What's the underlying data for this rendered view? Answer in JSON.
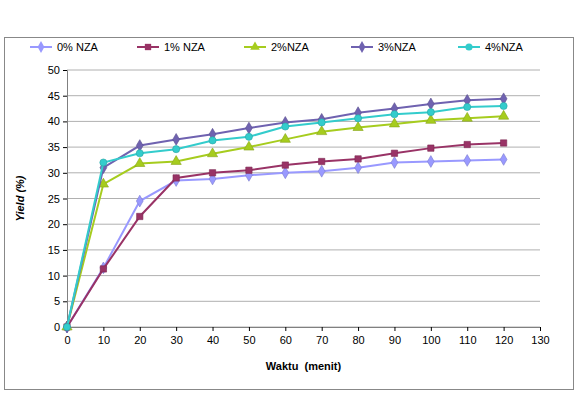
{
  "chart_data": {
    "type": "line",
    "x_label": "Waktu  (menit)",
    "y_label": "Yield (%)",
    "x": [
      0,
      10,
      20,
      30,
      40,
      50,
      60,
      70,
      80,
      90,
      100,
      110,
      120
    ],
    "series": [
      {
        "name": "0% NZA",
        "color": "#9999ff",
        "marker": "diamond",
        "values": [
          0,
          11.5,
          24.5,
          28.5,
          28.8,
          29.5,
          30,
          30.3,
          31,
          32,
          32.2,
          32.4,
          32.6
        ]
      },
      {
        "name": "1% NZA",
        "color": "#993366",
        "marker": "square",
        "values": [
          0,
          11.3,
          21.5,
          29,
          30,
          30.5,
          31.5,
          32.2,
          32.7,
          33.8,
          34.8,
          35.5,
          35.8
        ]
      },
      {
        "name": "2%NZA",
        "color": "#a6cc1e",
        "marker": "triangle",
        "values": [
          0,
          27.8,
          31.8,
          32.2,
          33.7,
          35,
          36.5,
          38,
          38.8,
          39.5,
          40.2,
          40.6,
          41
        ]
      },
      {
        "name": "3%NZA",
        "color": "#6f62b0",
        "marker": "diamond",
        "values": [
          0,
          31,
          35.3,
          36.5,
          37.5,
          38.7,
          39.8,
          40.4,
          41.7,
          42.5,
          43.4,
          44.1,
          44.4
        ]
      },
      {
        "name": "4%NZA",
        "color": "#33cccc",
        "marker": "circle",
        "values": [
          0,
          32,
          33.8,
          34.6,
          36.3,
          37,
          39,
          39.8,
          40.6,
          41.4,
          41.8,
          42.8,
          43
        ]
      }
    ],
    "xlim": [
      0,
      130
    ],
    "xticks": [
      0,
      10,
      20,
      30,
      40,
      50,
      60,
      70,
      80,
      90,
      100,
      110,
      120,
      130
    ],
    "ylim": [
      0,
      50
    ],
    "yticks": [
      0,
      5,
      10,
      15,
      20,
      25,
      30,
      35,
      40,
      45,
      50
    ],
    "grid": true,
    "legend": "top"
  }
}
